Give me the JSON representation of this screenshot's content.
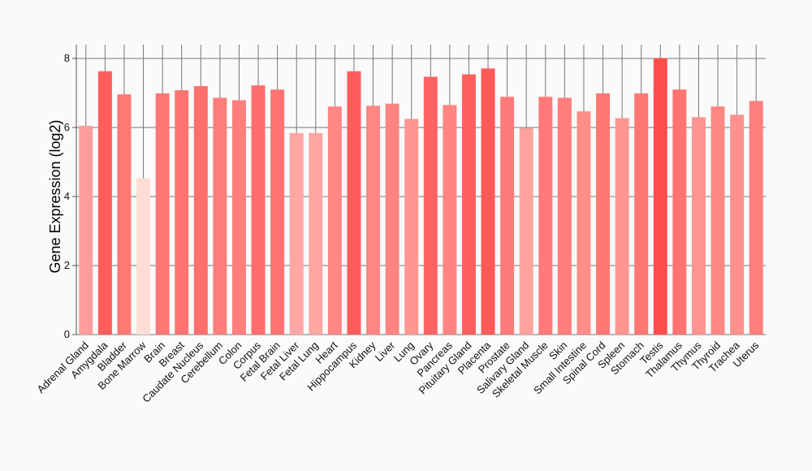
{
  "chart_data": {
    "type": "bar",
    "title": "",
    "xlabel": "",
    "ylabel": "Gene Expression (log2)",
    "ylim": [
      0,
      8.4
    ],
    "yticks": [
      0,
      2,
      4,
      6,
      8
    ],
    "grid": true,
    "categories": [
      "Adrenal Gland",
      "Amygdala",
      "Bladder",
      "Bone Marrow",
      "Brain",
      "Breast",
      "Caudate Nucleus",
      "Cerebellum",
      "Colon",
      "Corpus",
      "Fetal Brain",
      "Fetal Liver",
      "Fetal Lung",
      "Heart",
      "Hippocampus",
      "Kidney",
      "Liver",
      "Lung",
      "Ovary",
      "Pancreas",
      "Pituitary Gland",
      "Placenta",
      "Prostate",
      "Salivary Gland",
      "Skeletal Muscle",
      "Skin",
      "Small Intestine",
      "Spinal Cord",
      "Spleen",
      "Stomach",
      "Testis",
      "Thalamus",
      "Thymus",
      "Thyroid",
      "Trachea",
      "Uterus"
    ],
    "values": [
      6.05,
      7.63,
      6.96,
      4.53,
      6.99,
      7.08,
      7.2,
      6.86,
      6.79,
      7.22,
      7.1,
      5.84,
      5.84,
      6.61,
      7.63,
      6.63,
      6.69,
      6.25,
      7.47,
      6.65,
      7.54,
      7.71,
      6.89,
      5.98,
      6.89,
      6.86,
      6.47,
      6.99,
      6.27,
      6.99,
      8.01,
      7.1,
      6.3,
      6.61,
      6.37,
      6.77
    ],
    "color_scale": {
      "min_color": "#FFDDD5",
      "max_color": "#FF4D4D",
      "min_value": 4.53,
      "max_value": 8.01
    }
  }
}
